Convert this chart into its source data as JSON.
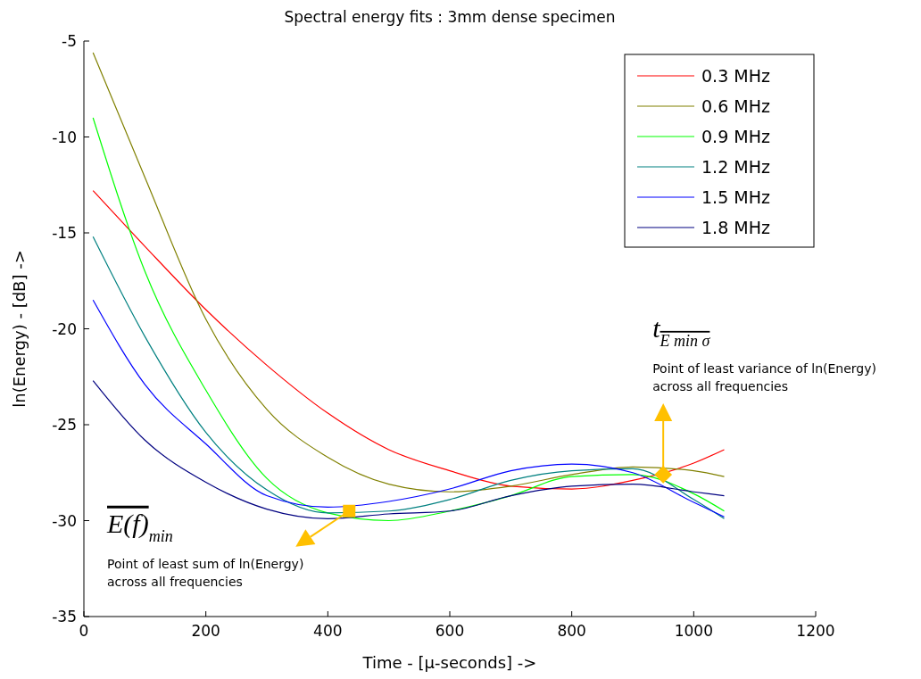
{
  "chart_data": {
    "type": "line",
    "title": "Spectral energy fits : 3mm  dense specimen",
    "xlabel": "Time - [μ-seconds] ->",
    "ylabel": "ln(Energy) - [dB] ->",
    "x": [
      15,
      100,
      200,
      300,
      400,
      500,
      600,
      700,
      800,
      900,
      1000,
      1050
    ],
    "series": [
      {
        "name": "0.3 MHz",
        "color": "#ff0000",
        "values": [
          -12.8,
          -15.7,
          -19.0,
          -21.9,
          -24.4,
          -26.3,
          -27.4,
          -28.2,
          -28.35,
          -27.9,
          -27.0,
          -26.3
        ]
      },
      {
        "name": "0.6 MHz",
        "color": "#808000",
        "values": [
          -5.6,
          -12.1,
          -19.5,
          -24.2,
          -26.7,
          -28.1,
          -28.5,
          -28.2,
          -27.6,
          -27.2,
          -27.4,
          -27.7
        ]
      },
      {
        "name": "0.9 MHz",
        "color": "#00ff00",
        "values": [
          -9.0,
          -17.0,
          -23.2,
          -27.8,
          -29.6,
          -30.0,
          -29.5,
          -28.7,
          -27.7,
          -27.6,
          -28.6,
          -29.5
        ]
      },
      {
        "name": "1.2 MHz",
        "color": "#008080",
        "values": [
          -15.2,
          -20.4,
          -25.4,
          -28.4,
          -29.6,
          -29.5,
          -28.9,
          -27.9,
          -27.4,
          -27.3,
          -28.9,
          -29.9
        ]
      },
      {
        "name": "1.5 MHz",
        "color": "#0000ff",
        "values": [
          -18.5,
          -22.9,
          -26.0,
          -28.7,
          -29.3,
          -29.0,
          -28.35,
          -27.4,
          -27.05,
          -27.5,
          -29.05,
          -29.8
        ]
      },
      {
        "name": "1.8 MHz",
        "color": "#000080",
        "values": [
          -22.7,
          -25.8,
          -28.0,
          -29.4,
          -29.9,
          -29.65,
          -29.5,
          -28.7,
          -28.2,
          -28.1,
          -28.5,
          -28.7
        ]
      },
      {
        "type": "scatter",
        "marker": "square",
        "color": "#ffc000",
        "x": [
          435
        ],
        "values": [
          -29.5
        ]
      },
      {
        "type": "scatter",
        "marker": "diamond",
        "color": "#ffc000",
        "x": [
          950
        ],
        "values": [
          -27.6
        ]
      }
    ],
    "xlim": [
      0,
      1200
    ],
    "xticks": [
      0,
      200,
      400,
      600,
      800,
      1000,
      1200
    ],
    "ylim": [
      -35,
      -5
    ],
    "yticks": [
      -35,
      -30,
      -25,
      -20,
      -15,
      -10,
      -5
    ],
    "grid": false,
    "legend": "top right",
    "marker": "none",
    "line_style": "solid",
    "annotations": [
      "Point of least sum of ln(Energy)\nacross all frequencies",
      "Point of least variance of ln(Energy)\nacross all frequencies",
      "E(f)$_{min}$",
      "t$_{E min σ}$"
    ]
  }
}
